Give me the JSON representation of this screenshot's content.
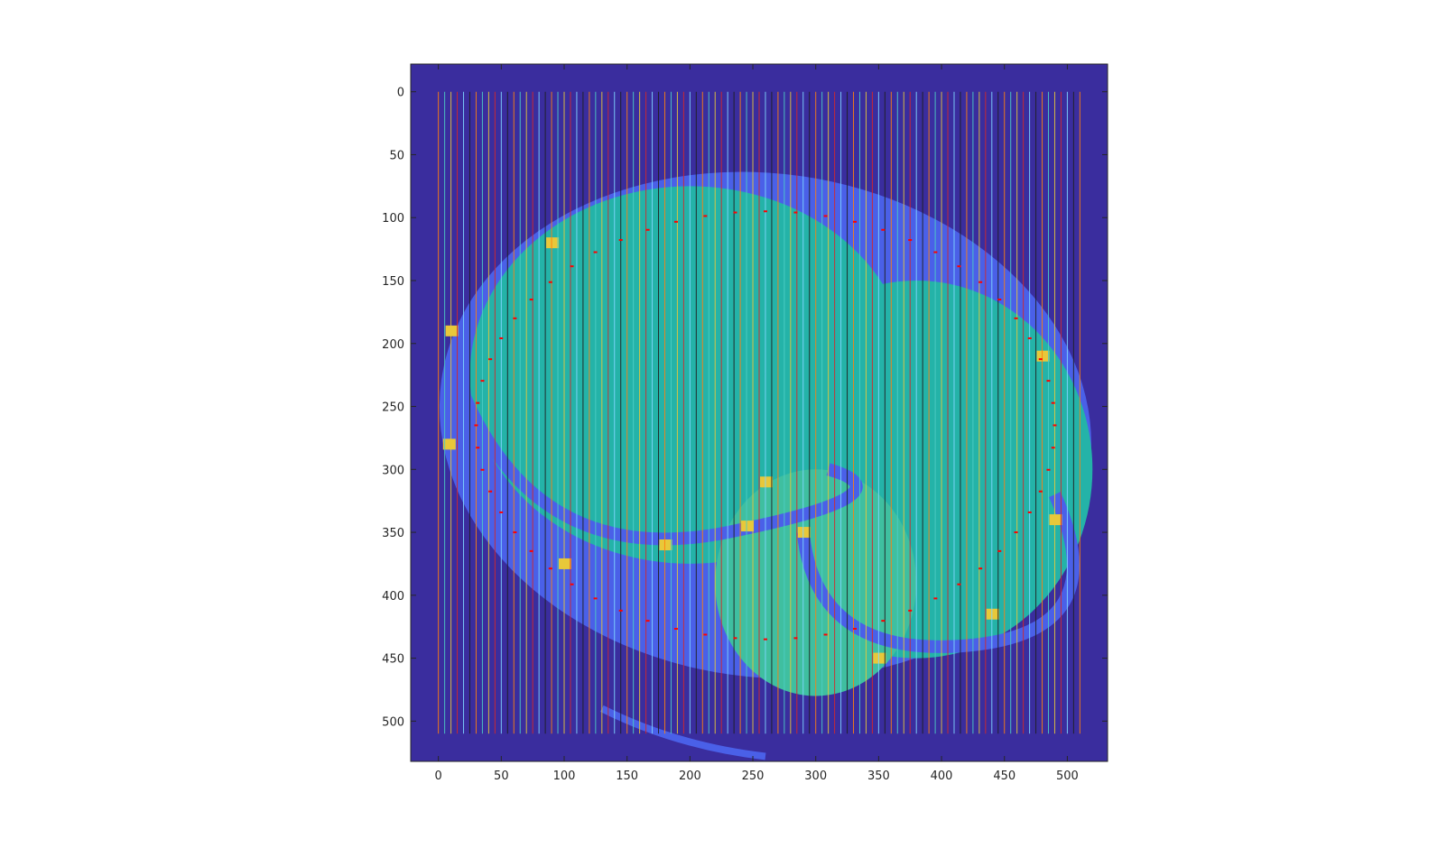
{
  "chart_data": {
    "type": "heatmap",
    "title": "",
    "xlabel": "",
    "ylabel": "",
    "xlim": [
      -22,
      532
    ],
    "ylim": [
      532,
      -22
    ],
    "y_direction": "reversed",
    "x_ticks": [
      0,
      50,
      100,
      150,
      200,
      250,
      300,
      350,
      400,
      450,
      500
    ],
    "y_ticks": [
      0,
      50,
      100,
      150,
      200,
      250,
      300,
      350,
      400,
      450,
      500
    ],
    "x_tick_labels": [
      "0",
      "50",
      "100",
      "150",
      "200",
      "250",
      "300",
      "350",
      "400",
      "450",
      "500"
    ],
    "y_tick_labels": [
      "0",
      "50",
      "100",
      "150",
      "200",
      "250",
      "300",
      "350",
      "400",
      "450",
      "500"
    ],
    "grid": false,
    "legend": "none",
    "colormap": "parula",
    "colors": {
      "background": "#3a2d9e",
      "outer_ring": "#4a60e8",
      "body": "#24b3a8",
      "body_light": "#3fbfa0",
      "highlight": "#e8c83a",
      "marker": "#ff0000"
    },
    "image_extent": {
      "x": [
        0,
        510
      ],
      "y": [
        0,
        510
      ]
    },
    "vertical_lines": {
      "x_positions": [
        0,
        5,
        10,
        15,
        20,
        25,
        30,
        35,
        40,
        45,
        50,
        55,
        60,
        65,
        70,
        75,
        80,
        85,
        90,
        95,
        100,
        105,
        110,
        115,
        120,
        125,
        130,
        135,
        140,
        145,
        150,
        155,
        160,
        165,
        170,
        175,
        180,
        185,
        190,
        195,
        200,
        205,
        210,
        215,
        220,
        225,
        230,
        235,
        240,
        245,
        250,
        255,
        260,
        265,
        270,
        275,
        280,
        285,
        290,
        295,
        300,
        305,
        310,
        315,
        320,
        325,
        330,
        335,
        340,
        345,
        350,
        355,
        360,
        365,
        370,
        375,
        380,
        385,
        390,
        395,
        400,
        405,
        410,
        415,
        420,
        425,
        430,
        435,
        440,
        445,
        450,
        455,
        460,
        465,
        470,
        475,
        480,
        485,
        490,
        495,
        500,
        505,
        510
      ],
      "y_range": [
        0,
        510
      ],
      "colors": [
        "#ff7f0e",
        "#4ecdc4",
        "#e8c83a",
        "#d62728",
        "#7fd6ff",
        "#1f1f1f"
      ]
    },
    "overlay_marks": "red contour markers along organ boundaries"
  }
}
